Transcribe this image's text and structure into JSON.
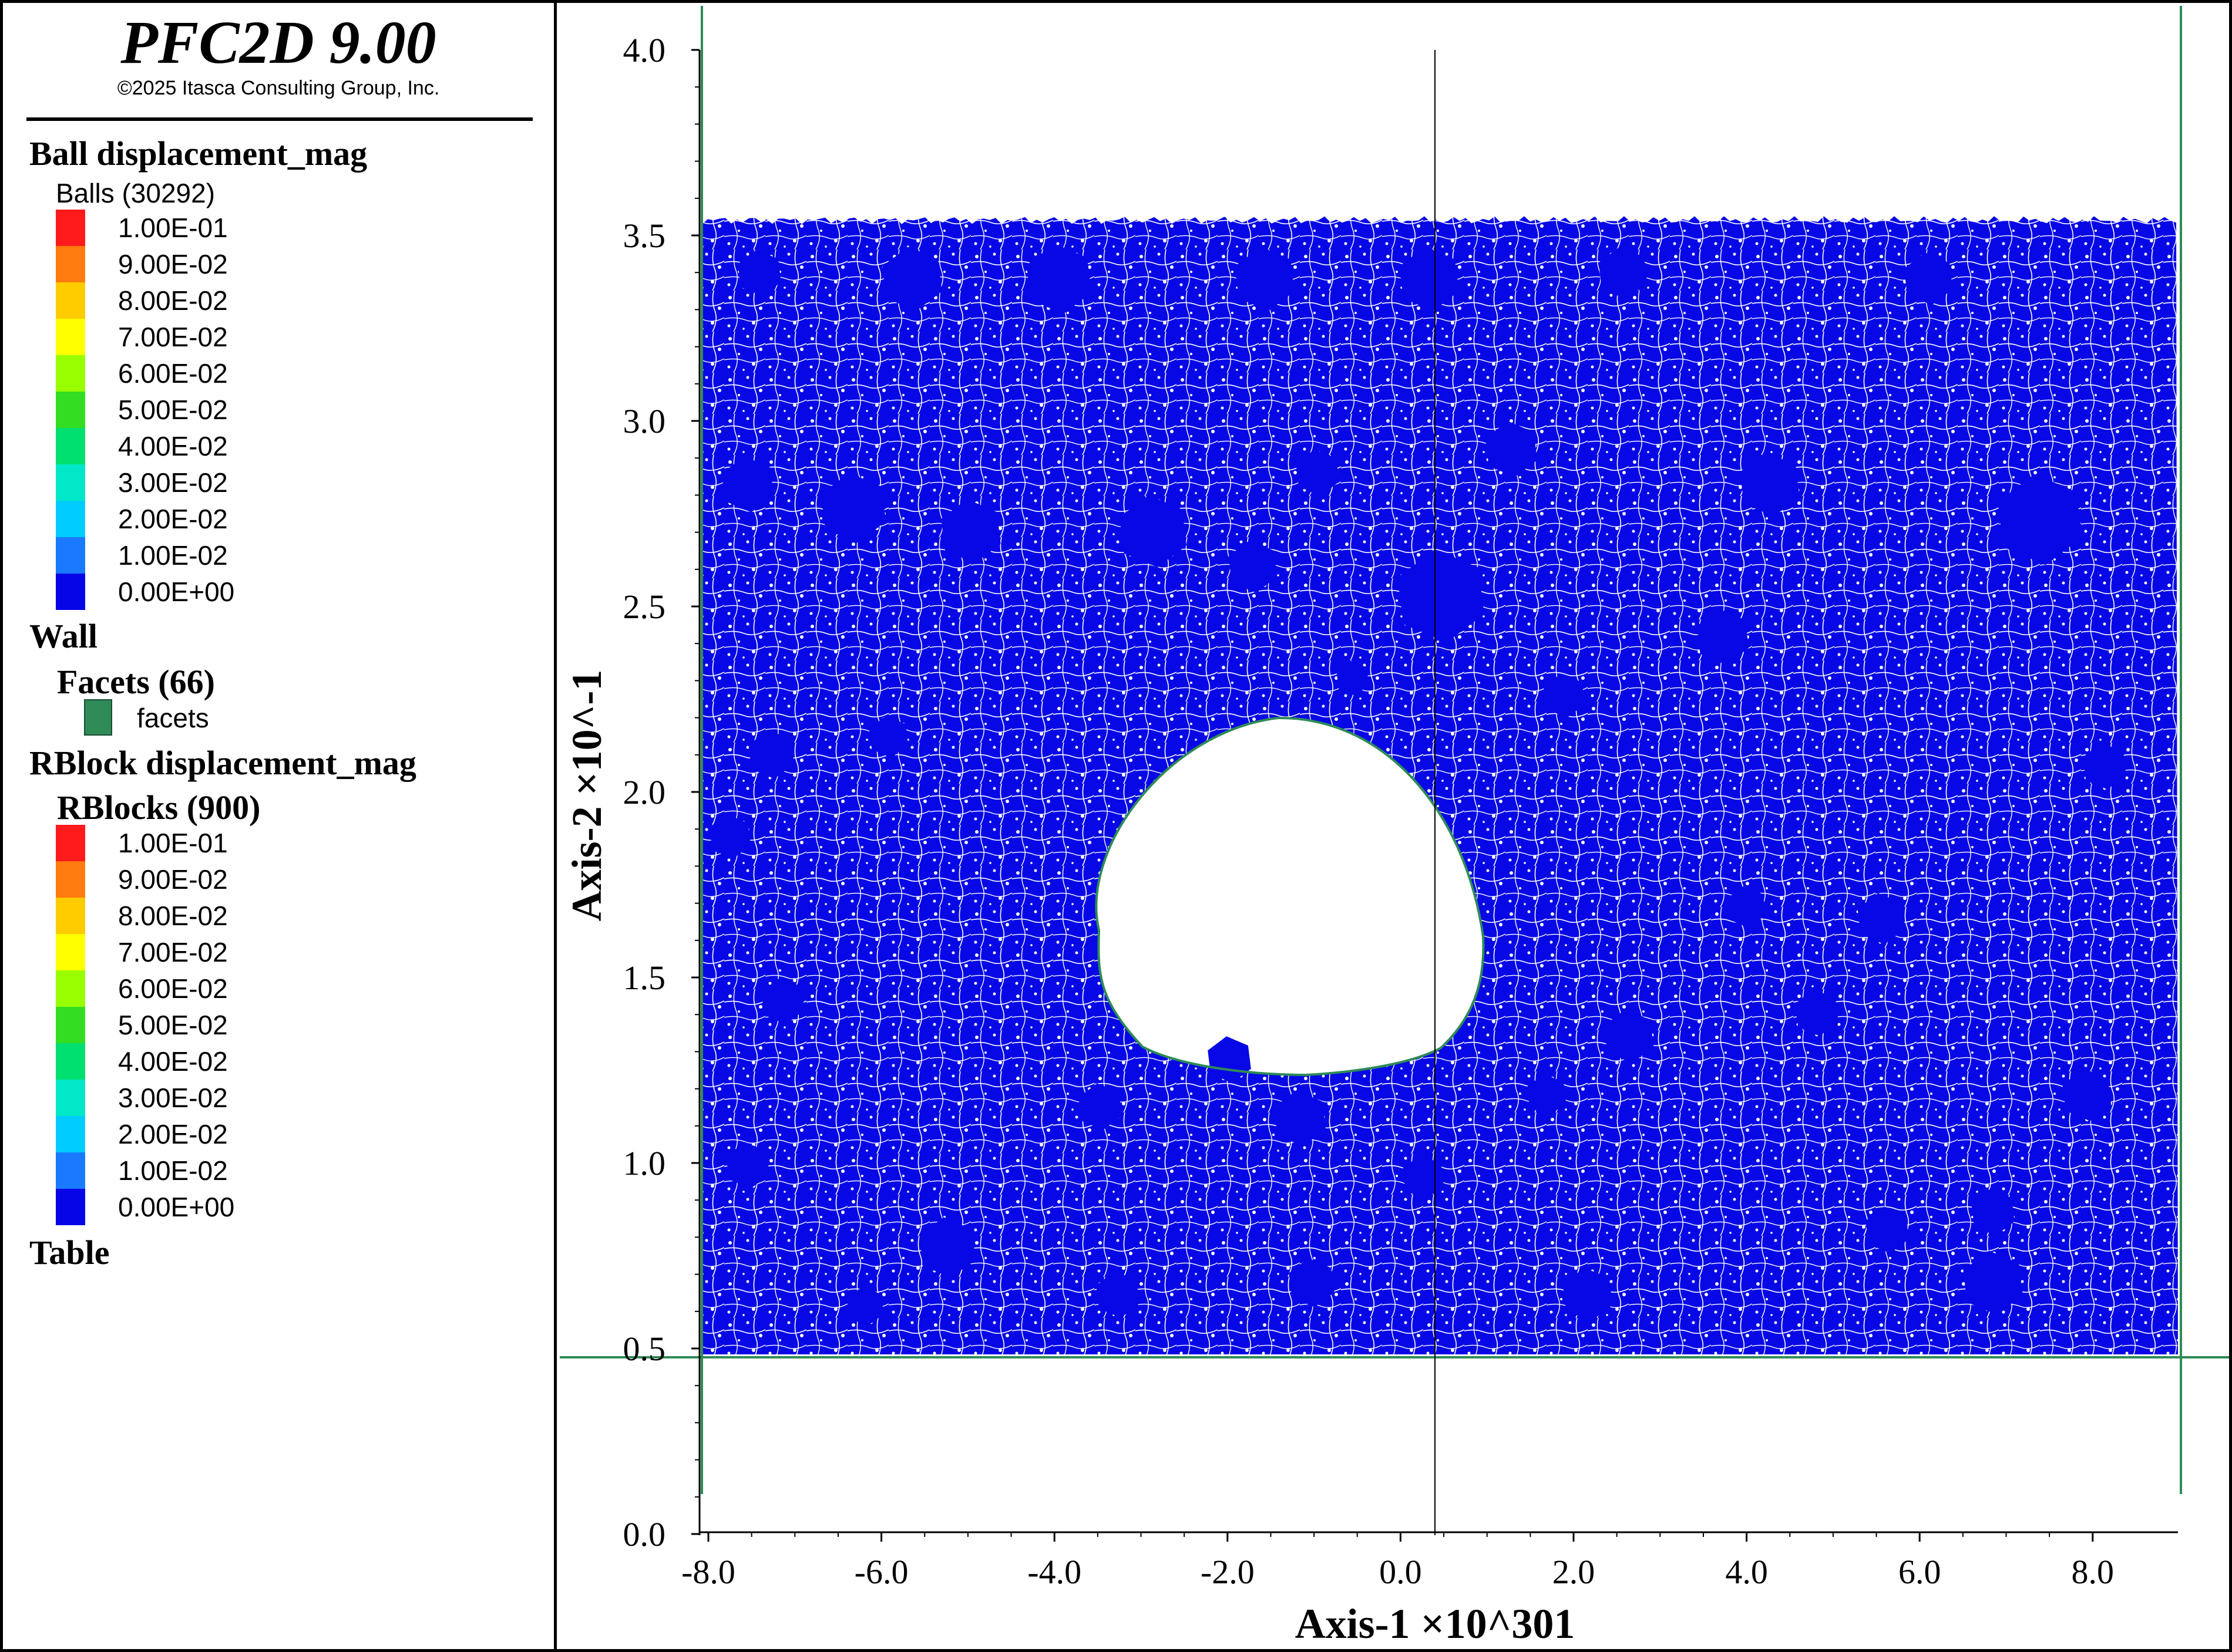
{
  "app": {
    "title": "PFC2D 9.00",
    "copyright": "©2025 Itasca Consulting Group, Inc."
  },
  "legend": {
    "ball_header": "Ball displacement_mag",
    "balls_label": "Balls (30292)",
    "ball_scale": [
      "1.00E-01",
      "9.00E-02",
      "8.00E-02",
      "7.00E-02",
      "6.00E-02",
      "5.00E-02",
      "4.00E-02",
      "3.00E-02",
      "2.00E-02",
      "1.00E-02",
      "0.00E+00"
    ],
    "wall_header": "Wall",
    "facets_label": "Facets (66)",
    "facets_item": "facets",
    "rblock_header": "RBlock displacement_mag",
    "rblocks_label": "RBlocks (900)",
    "rblock_scale": [
      "1.00E-01",
      "9.00E-02",
      "8.00E-02",
      "7.00E-02",
      "6.00E-02",
      "5.00E-02",
      "4.00E-02",
      "3.00E-02",
      "2.00E-02",
      "1.00E-02",
      "0.00E+00"
    ],
    "table_header": "Table",
    "scale_colors": [
      "#ff1b1b",
      "#ff7a0f",
      "#ffcc00",
      "#ffff00",
      "#99ff00",
      "#33dd22",
      "#00e070",
      "#00e8c8",
      "#00ccff",
      "#1a7aff",
      "#0505e8"
    ],
    "facet_color": "#2e8b57"
  },
  "plot": {
    "x_axis_title": "Axis-1 ×10^301",
    "y_axis_title": "Axis-2 ×10^-1",
    "x_ticks": [
      "-8.0",
      "-6.0",
      "-4.0",
      "-2.0",
      "0.0",
      "2.0",
      "4.0",
      "6.0",
      "8.0"
    ],
    "y_ticks": [
      "4.0",
      "3.5",
      "3.0",
      "2.5",
      "2.0",
      "1.5",
      "1.0",
      "0.5",
      "0.0"
    ],
    "material_color": "#0808e6",
    "wall_color": "#2e8b57"
  }
}
